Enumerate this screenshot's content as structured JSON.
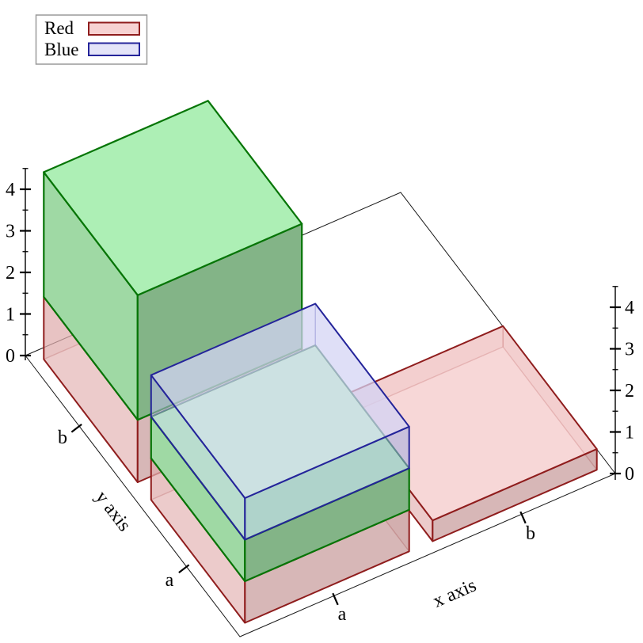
{
  "figure": {
    "kind": "3d-plot",
    "background": "#ffffff"
  },
  "chart_data": {
    "type": "bar",
    "subtype": "stacked-histogram-3d",
    "title": "",
    "x_axis": {
      "label": "x axis",
      "categories": [
        "a",
        "b"
      ]
    },
    "y_axis": {
      "label": "y axis",
      "categories": [
        "a",
        "b"
      ]
    },
    "z_axis": {
      "ticks": [
        0,
        1,
        2,
        3,
        4
      ],
      "minor_ticks": [
        0.5,
        1.5,
        2.5,
        3.5,
        4.5
      ],
      "range": [
        0,
        4.5
      ]
    },
    "legend": [
      {
        "label": "Red",
        "swatch_fill": "#f7d2d2",
        "swatch_border": "#8f1d1d"
      },
      {
        "label": "Blue",
        "swatch_fill": "#e4e4f8",
        "swatch_border": "#24249a"
      }
    ],
    "bars": [
      {
        "x": "b",
        "y": "b",
        "stack": []
      },
      {
        "x": "a",
        "y": "b",
        "stack": [
          {
            "series": "Red",
            "from": 0,
            "to": 1.5
          },
          {
            "series": "green",
            "from": 1.5,
            "to": 4.5
          }
        ]
      },
      {
        "x": "b",
        "y": "a",
        "stack": [
          {
            "series": "Red",
            "from": 0,
            "to": 0.5
          }
        ]
      },
      {
        "x": "a",
        "y": "a",
        "stack": [
          {
            "series": "Red",
            "from": 0,
            "to": 1
          },
          {
            "series": "green",
            "from": 1,
            "to": 2
          },
          {
            "series": "Blue",
            "from": 2,
            "to": 3
          }
        ]
      }
    ]
  },
  "styles": {
    "frame_line": "#000000",
    "text_color": "#000000",
    "legend_border": "#9a9a9a",
    "legend_bg": "#ffffff",
    "series_styles": {
      "Red": {
        "stroke": "#8f1d1d",
        "top": "rgba(243,196,196,0.67)",
        "west": "rgba(226,177,177,0.67)",
        "south": "rgba(196,148,148,0.67)",
        "back": "rgba(190,120,120,0.18)",
        "lw": 2
      },
      "green": {
        "stroke": "#067506",
        "top": "#adefb5",
        "west": "#9fd9a4",
        "south": "#83b487",
        "back": null,
        "lw": 2.2
      },
      "Blue": {
        "stroke": "#24249a",
        "top": "rgba(218,218,248,0.68)",
        "west": "rgba(200,200,238,0.45)",
        "south": "rgba(178,184,226,0.50)",
        "back": "rgba(140,140,210,0.20)",
        "lw": 2
      }
    }
  }
}
